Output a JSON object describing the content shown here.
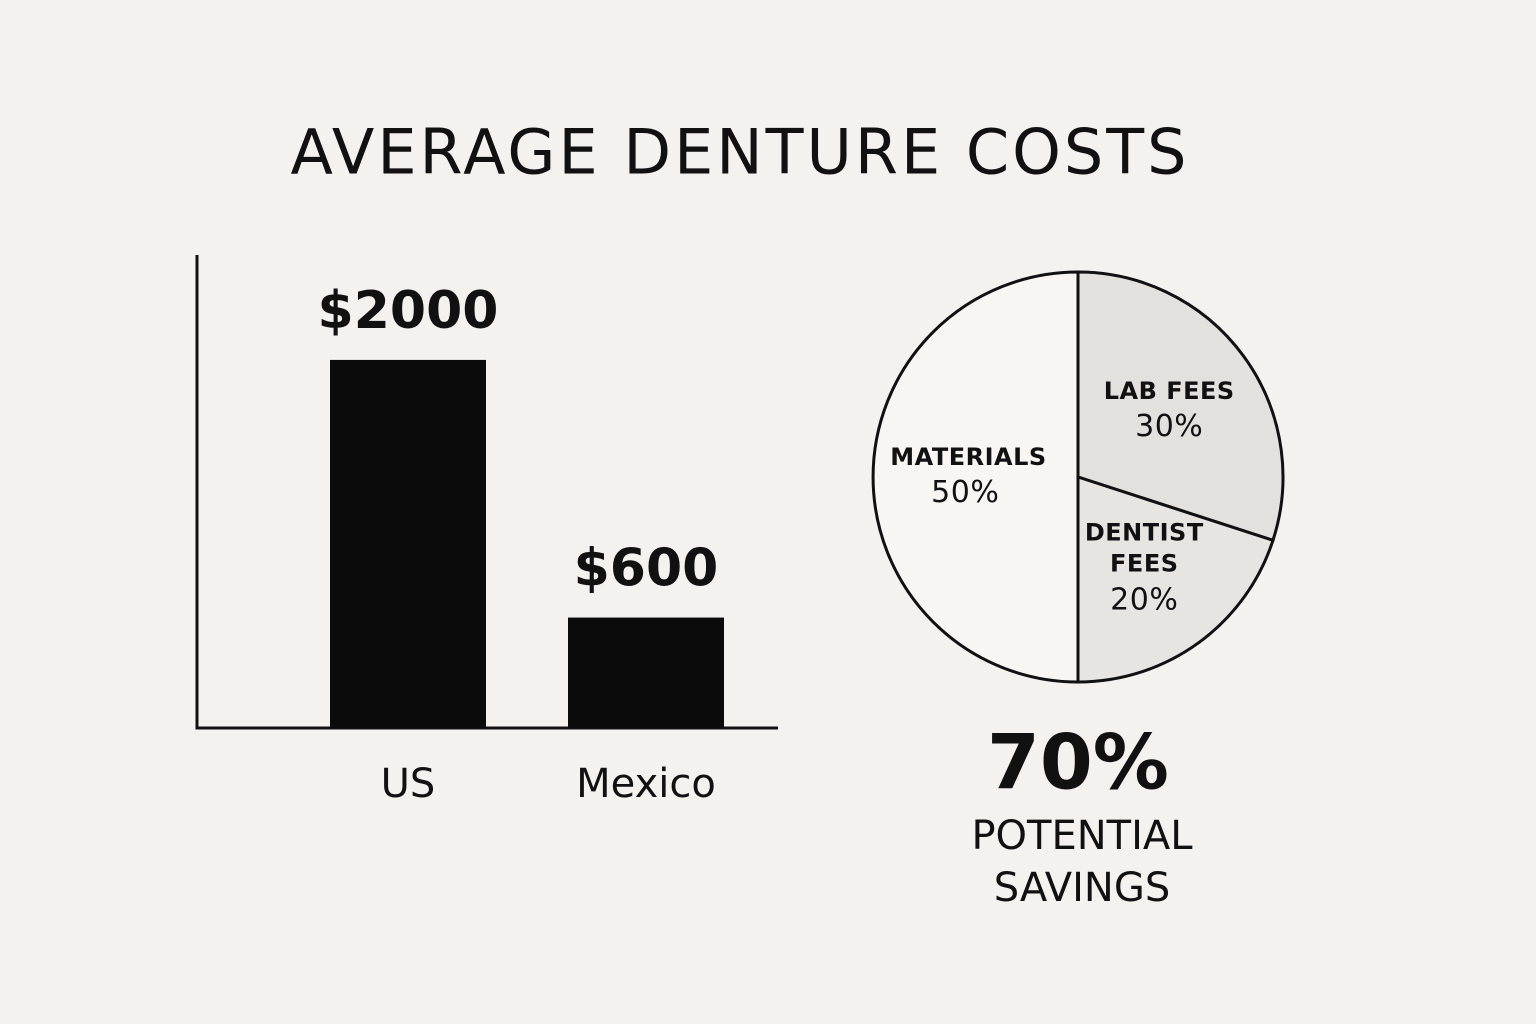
{
  "title": "AVERAGE DENTURE COSTS",
  "chart_data": [
    {
      "type": "bar",
      "categories": [
        "US",
        "Mexico"
      ],
      "values": [
        2000,
        600
      ],
      "value_labels": [
        "$2000",
        "$600"
      ],
      "color": "#0b0b0b",
      "ylim": [
        0,
        2570
      ]
    },
    {
      "type": "pie",
      "categories": [
        "LAB FEES",
        "DENTIST FEES",
        "MATERIALS"
      ],
      "values": [
        30,
        20,
        50
      ],
      "value_labels": [
        "30%",
        "20%",
        "50%"
      ],
      "colors": [
        "#e2e1de",
        "#e6e5e2",
        "#f7f6f3"
      ],
      "annotation": {
        "headline": "70%",
        "text": "POTENTIAL SAVINGS"
      }
    }
  ]
}
